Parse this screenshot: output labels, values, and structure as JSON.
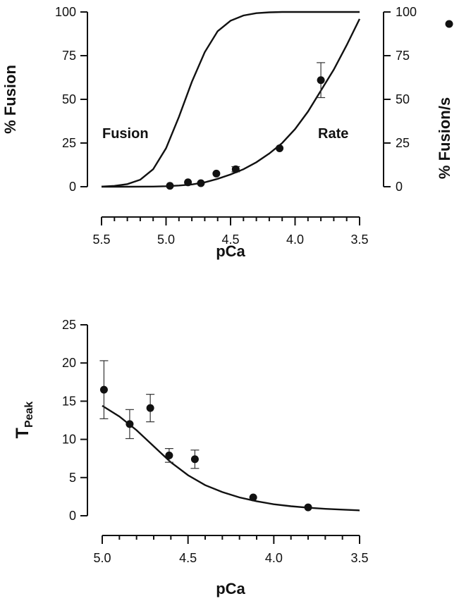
{
  "chart_data": [
    {
      "type": "scatter",
      "xlabel": "pCa",
      "ylabel": "% Fusion",
      "y2label": "% Fusion/s",
      "x_ticks": [
        "5.5",
        "5.0",
        "4.5",
        "4.0",
        "3.5"
      ],
      "y_ticks": [
        "0",
        "25",
        "50",
        "75",
        "100"
      ],
      "y2_ticks": [
        "0",
        "25",
        "50",
        "75",
        "100"
      ],
      "xlim": [
        5.5,
        3.5
      ],
      "ylim": [
        0,
        100
      ],
      "y2lim": [
        0,
        100
      ],
      "x_reversed": true,
      "annotations": [
        "Fusion",
        "Rate"
      ],
      "legend_marker": "filled-circle",
      "curves": [
        {
          "label": "Fusion",
          "x": [
            5.5,
            5.4,
            5.3,
            5.2,
            5.1,
            5.0,
            4.9,
            4.8,
            4.7,
            4.6,
            4.5,
            4.4,
            4.3,
            4.2,
            4.1,
            4.0,
            3.9,
            3.8,
            3.7,
            3.6,
            3.5
          ],
          "y": [
            0.1,
            0.5,
            1.5,
            4,
            10,
            22,
            40,
            60,
            77,
            89,
            95,
            98,
            99.3,
            99.8,
            100,
            100,
            100,
            100,
            100,
            100,
            100
          ]
        },
        {
          "label": "Rate",
          "x": [
            5.5,
            5.3,
            5.1,
            5.0,
            4.9,
            4.8,
            4.7,
            4.6,
            4.5,
            4.4,
            4.3,
            4.2,
            4.1,
            4.0,
            3.9,
            3.8,
            3.7,
            3.6,
            3.5
          ],
          "y": [
            0,
            0,
            0.1,
            0.3,
            0.7,
            1.3,
            2.5,
            4.5,
            7,
            10,
            14,
            19,
            25,
            33,
            43,
            55,
            67,
            81,
            96
          ]
        }
      ],
      "points": {
        "x": [
          4.97,
          4.83,
          4.73,
          4.61,
          4.46,
          4.12,
          3.8
        ],
        "y": [
          0.5,
          2.5,
          2,
          7.5,
          10,
          22,
          61
        ],
        "err": [
          0,
          0,
          0,
          0,
          1.5,
          0,
          10
        ]
      }
    },
    {
      "type": "scatter",
      "xlabel": "pCa",
      "ylabel": "T",
      "ylabel_subscript": "Peak",
      "x_ticks": [
        "5.0",
        "4.5",
        "4.0",
        "3.5"
      ],
      "y_ticks": [
        "0",
        "5",
        "10",
        "15",
        "20",
        "25"
      ],
      "xlim": [
        5.0,
        3.5
      ],
      "ylim": [
        0,
        25
      ],
      "x_reversed": true,
      "curve": {
        "x": [
          5.0,
          4.9,
          4.8,
          4.7,
          4.6,
          4.5,
          4.4,
          4.3,
          4.2,
          4.1,
          4.0,
          3.9,
          3.8,
          3.7,
          3.6,
          3.5
        ],
        "y": [
          14.4,
          13.0,
          11.2,
          9.1,
          7.0,
          5.3,
          4.0,
          3.1,
          2.4,
          1.9,
          1.5,
          1.25,
          1.05,
          0.9,
          0.8,
          0.7
        ]
      },
      "points": {
        "x": [
          4.99,
          4.84,
          4.72,
          4.61,
          4.46,
          4.12,
          3.8
        ],
        "y": [
          16.5,
          12.0,
          14.1,
          7.9,
          7.4,
          2.4,
          1.1
        ],
        "err": [
          3.8,
          1.9,
          1.8,
          0.9,
          1.2,
          0,
          0
        ]
      }
    }
  ]
}
